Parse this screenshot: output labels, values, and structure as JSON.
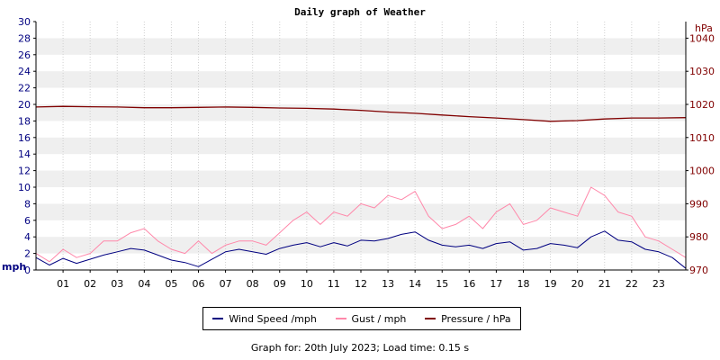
{
  "chart_data": {
    "type": "line",
    "title": "Daily graph of Weather",
    "left_axis": {
      "unit_label": "mph",
      "ylim": [
        0,
        30
      ],
      "ticks": [
        "0",
        "2",
        "4",
        "6",
        "8",
        "10",
        "12",
        "14",
        "16",
        "18",
        "20",
        "22",
        "24",
        "26",
        "28",
        "30"
      ]
    },
    "right_axis": {
      "unit_label": "hPa",
      "ylim": [
        970,
        1045
      ],
      "ticks": [
        "970",
        "980",
        "990",
        "1000",
        "1010",
        "1020",
        "1030",
        "1040"
      ]
    },
    "x_axis": {
      "xlim": [
        0,
        24
      ],
      "ticks": [
        "01",
        "02",
        "03",
        "04",
        "05",
        "06",
        "07",
        "08",
        "09",
        "10",
        "11",
        "12",
        "13",
        "14",
        "15",
        "16",
        "17",
        "18",
        "19",
        "20",
        "21",
        "22",
        "23"
      ]
    },
    "grid": true,
    "legend_position": "bottom",
    "series": [
      {
        "name": "Wind Speed /mph",
        "axis": "left",
        "color": "#000080",
        "x": [
          0,
          0.5,
          1,
          1.5,
          2,
          2.5,
          3,
          3.5,
          4,
          4.5,
          5,
          5.5,
          6,
          6.5,
          7,
          7.5,
          8,
          8.5,
          9,
          9.5,
          10,
          10.5,
          11,
          11.5,
          12,
          12.5,
          13,
          13.5,
          14,
          14.5,
          15,
          15.5,
          16,
          16.5,
          17,
          17.5,
          18,
          18.5,
          19,
          19.5,
          20,
          20.5,
          21,
          21.5,
          22,
          22.5,
          23,
          23.5,
          24
        ],
        "values": [
          1.5,
          0.6,
          1.4,
          0.8,
          1.3,
          1.8,
          2.2,
          2.6,
          2.4,
          1.8,
          1.2,
          0.9,
          0.4,
          1.3,
          2.2,
          2.5,
          2.2,
          1.9,
          2.6,
          3.0,
          3.3,
          2.8,
          3.3,
          2.9,
          3.6,
          3.5,
          3.8,
          4.3,
          4.6,
          3.6,
          3.0,
          2.8,
          3.0,
          2.6,
          3.2,
          3.4,
          2.4,
          2.6,
          3.2,
          3.0,
          2.7,
          4.0,
          4.7,
          3.6,
          3.4,
          2.5,
          2.2,
          1.5,
          0.2
        ]
      },
      {
        "name": "Gust / mph",
        "axis": "left",
        "color": "#ff88aa",
        "x": [
          0,
          0.5,
          1,
          1.5,
          2,
          2.5,
          3,
          3.5,
          4,
          4.5,
          5,
          5.5,
          6,
          6.5,
          7,
          7.5,
          8,
          8.5,
          9,
          9.5,
          10,
          10.5,
          11,
          11.5,
          12,
          12.5,
          13,
          13.5,
          14,
          14.5,
          15,
          15.5,
          16,
          16.5,
          17,
          17.5,
          18,
          18.5,
          19,
          19.5,
          20,
          20.5,
          21,
          21.5,
          22,
          22.5,
          23,
          23.5,
          24
        ],
        "values": [
          2.0,
          1.0,
          2.5,
          1.5,
          2.0,
          3.5,
          3.5,
          4.5,
          5.0,
          3.5,
          2.5,
          2.0,
          3.5,
          2.0,
          3.0,
          3.5,
          3.5,
          3.0,
          4.5,
          6.0,
          7.0,
          5.5,
          7.0,
          6.5,
          8.0,
          7.5,
          9.0,
          8.5,
          9.5,
          6.5,
          5.0,
          5.5,
          6.5,
          5.0,
          7.0,
          8.0,
          5.5,
          6.0,
          7.5,
          7.0,
          6.5,
          10.0,
          9.0,
          7.0,
          6.5,
          4.0,
          3.5,
          2.5,
          1.5
        ]
      },
      {
        "name": "Pressure / hPa",
        "axis": "right",
        "color": "#800000",
        "x": [
          0,
          1,
          2,
          3,
          4,
          5,
          6,
          7,
          8,
          9,
          10,
          11,
          12,
          13,
          14,
          15,
          16,
          17,
          18,
          19,
          20,
          21,
          22,
          23,
          24
        ],
        "values": [
          1019.2,
          1019.4,
          1019.3,
          1019.2,
          1019.0,
          1019.0,
          1019.1,
          1019.2,
          1019.1,
          1018.9,
          1018.8,
          1018.6,
          1018.2,
          1017.7,
          1017.3,
          1016.8,
          1016.3,
          1015.9,
          1015.4,
          1014.9,
          1015.1,
          1015.6,
          1015.9,
          1015.9,
          1016.0
        ]
      }
    ]
  },
  "footer": {
    "text": "Graph for: 20th July 2023; Load time: 0.15 s"
  }
}
